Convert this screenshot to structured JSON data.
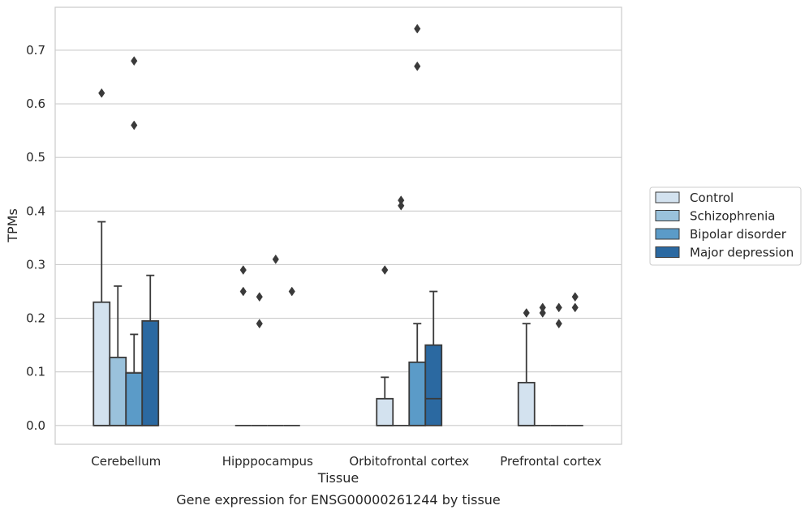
{
  "chart_data": {
    "type": "box",
    "title": "",
    "caption": "Gene expression for ENSG00000261244 by tissue",
    "xlabel": "Tissue",
    "ylabel": "TPMs",
    "ylim": [
      -0.035,
      0.78
    ],
    "yticks": [
      0.0,
      0.1,
      0.2,
      0.3,
      0.4,
      0.5,
      0.6,
      0.7
    ],
    "ytick_labels": [
      "0.0",
      "0.1",
      "0.2",
      "0.3",
      "0.4",
      "0.5",
      "0.6",
      "0.7"
    ],
    "grid": "horizontal",
    "legend_position": "right",
    "categories": [
      "Cerebellum",
      "Hipppocampus",
      "Orbitofrontal cortex",
      "Prefrontal cortex"
    ],
    "series": [
      {
        "name": "Control",
        "color": "#d3e2ef",
        "boxes": [
          {
            "q1": 0.0,
            "median": 0.0,
            "q3": 0.23,
            "whisker_low": 0.0,
            "whisker_high": 0.38,
            "outliers": [
              0.62
            ]
          },
          {
            "q1": 0.0,
            "median": 0.0,
            "q3": 0.0,
            "whisker_low": 0.0,
            "whisker_high": 0.0,
            "outliers": [
              0.29,
              0.25
            ]
          },
          {
            "q1": 0.0,
            "median": 0.0,
            "q3": 0.05,
            "whisker_low": 0.0,
            "whisker_high": 0.09,
            "outliers": [
              0.29
            ]
          },
          {
            "q1": 0.0,
            "median": 0.0,
            "q3": 0.08,
            "whisker_low": 0.0,
            "whisker_high": 0.19,
            "outliers": [
              0.21
            ]
          }
        ]
      },
      {
        "name": "Schizophrenia",
        "color": "#9ac2dc",
        "boxes": [
          {
            "q1": 0.0,
            "median": 0.0,
            "q3": 0.127,
            "whisker_low": 0.0,
            "whisker_high": 0.26,
            "outliers": []
          },
          {
            "q1": 0.0,
            "median": 0.0,
            "q3": 0.0,
            "whisker_low": 0.0,
            "whisker_high": 0.0,
            "outliers": [
              0.24,
              0.19
            ]
          },
          {
            "q1": 0.0,
            "median": 0.0,
            "q3": 0.0,
            "whisker_low": 0.0,
            "whisker_high": 0.0,
            "outliers": [
              0.42,
              0.41
            ]
          },
          {
            "q1": 0.0,
            "median": 0.0,
            "q3": 0.0,
            "whisker_low": 0.0,
            "whisker_high": 0.0,
            "outliers": [
              0.22,
              0.21
            ]
          }
        ]
      },
      {
        "name": "Bipolar disorder",
        "color": "#5b9bc8",
        "boxes": [
          {
            "q1": 0.0,
            "median": 0.0,
            "q3": 0.098,
            "whisker_low": 0.0,
            "whisker_high": 0.17,
            "outliers": [
              0.68,
              0.56
            ]
          },
          {
            "q1": 0.0,
            "median": 0.0,
            "q3": 0.0,
            "whisker_low": 0.0,
            "whisker_high": 0.0,
            "outliers": [
              0.31
            ]
          },
          {
            "q1": 0.0,
            "median": 0.0,
            "q3": 0.118,
            "whisker_low": 0.0,
            "whisker_high": 0.19,
            "outliers": [
              0.74,
              0.67
            ]
          },
          {
            "q1": 0.0,
            "median": 0.0,
            "q3": 0.0,
            "whisker_low": 0.0,
            "whisker_high": 0.0,
            "outliers": [
              0.22,
              0.19
            ]
          }
        ]
      },
      {
        "name": "Major depression",
        "color": "#2b69a1",
        "boxes": [
          {
            "q1": 0.0,
            "median": 0.0,
            "q3": 0.195,
            "whisker_low": 0.0,
            "whisker_high": 0.28,
            "outliers": []
          },
          {
            "q1": 0.0,
            "median": 0.0,
            "q3": 0.0,
            "whisker_low": 0.0,
            "whisker_high": 0.0,
            "outliers": [
              0.25
            ]
          },
          {
            "q1": 0.0,
            "median": 0.05,
            "q3": 0.15,
            "whisker_low": 0.0,
            "whisker_high": 0.25,
            "outliers": []
          },
          {
            "q1": 0.0,
            "median": 0.0,
            "q3": 0.0,
            "whisker_low": 0.0,
            "whisker_high": 0.0,
            "outliers": [
              0.24,
              0.22
            ]
          }
        ]
      }
    ]
  }
}
